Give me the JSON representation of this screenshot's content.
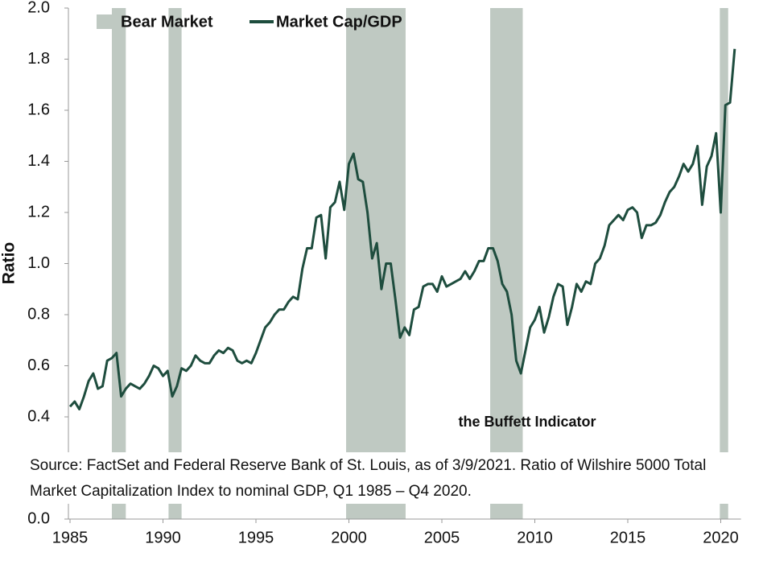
{
  "chart_data": {
    "type": "line",
    "ylabel": "Ratio",
    "annotation": "the Buffett Indicator",
    "source": [
      "Source: FactSet and Federal Reserve Bank of St. Louis, as of 3/9/2021. Ratio of Wilshire 5000 Total",
      "Market Capitalization Index to nominal GDP, Q1 1985 – Q4 2020."
    ],
    "xlim": [
      1985,
      2021
    ],
    "xticks": [
      1985,
      1990,
      1995,
      2000,
      2005,
      2010,
      2015,
      2020
    ],
    "ylim": [
      0,
      2
    ],
    "yticks": [
      {
        "value": 0,
        "label": "0.0"
      },
      0.4,
      0.6,
      0.8,
      {
        "value": 1,
        "label": "1.0"
      },
      1.2,
      1.4,
      1.6,
      1.8,
      {
        "value": 2,
        "label": "2.0"
      }
    ],
    "bear_markets": {
      "name": "Bear Market",
      "color": "#bfc9c2",
      "ranges": [
        [
          1987.25,
          1988.0
        ],
        [
          1990.3,
          1991.0
        ],
        [
          1999.85,
          2003.05
        ],
        [
          2007.6,
          2009.35
        ],
        [
          2019.95,
          2020.4
        ]
      ]
    },
    "x": [
      1985,
      1985.25,
      1985.5,
      1985.75,
      1986,
      1986.25,
      1986.5,
      1986.75,
      1987,
      1987.25,
      1987.5,
      1987.75,
      1988,
      1988.25,
      1988.5,
      1988.75,
      1989,
      1989.25,
      1989.5,
      1989.75,
      1990,
      1990.25,
      1990.5,
      1990.75,
      1991,
      1991.25,
      1991.5,
      1991.75,
      1992,
      1992.25,
      1992.5,
      1992.75,
      1993,
      1993.25,
      1993.5,
      1993.75,
      1994,
      1994.25,
      1994.5,
      1994.75,
      1995,
      1995.25,
      1995.5,
      1995.75,
      1996,
      1996.25,
      1996.5,
      1996.75,
      1997,
      1997.25,
      1997.5,
      1997.75,
      1998,
      1998.25,
      1998.5,
      1998.75,
      1999,
      1999.25,
      1999.5,
      1999.75,
      2000,
      2000.25,
      2000.5,
      2000.75,
      2001,
      2001.25,
      2001.5,
      2001.75,
      2002,
      2002.25,
      2002.5,
      2002.75,
      2003,
      2003.25,
      2003.5,
      2003.75,
      2004,
      2004.25,
      2004.5,
      2004.75,
      2005,
      2005.25,
      2005.5,
      2005.75,
      2006,
      2006.25,
      2006.5,
      2006.75,
      2007,
      2007.25,
      2007.5,
      2007.75,
      2008,
      2008.25,
      2008.5,
      2008.75,
      2009,
      2009.25,
      2009.5,
      2009.75,
      2010,
      2010.25,
      2010.5,
      2010.75,
      2011,
      2011.25,
      2011.5,
      2011.75,
      2012,
      2012.25,
      2012.5,
      2012.75,
      2013,
      2013.25,
      2013.5,
      2013.75,
      2014,
      2014.25,
      2014.5,
      2014.75,
      2015,
      2015.25,
      2015.5,
      2015.75,
      2016,
      2016.25,
      2016.5,
      2016.75,
      2017,
      2017.25,
      2017.5,
      2017.75,
      2018,
      2018.25,
      2018.5,
      2018.75,
      2019,
      2019.25,
      2019.5,
      2019.75,
      2020,
      2020.25,
      2020.5,
      2020.75
    ],
    "series": [
      {
        "name": "Market Cap/GDP",
        "color": "#1e4d3e",
        "values": [
          0.44,
          0.46,
          0.43,
          0.48,
          0.54,
          0.57,
          0.51,
          0.52,
          0.62,
          0.63,
          0.65,
          0.48,
          0.51,
          0.53,
          0.52,
          0.51,
          0.53,
          0.56,
          0.6,
          0.59,
          0.56,
          0.58,
          0.48,
          0.52,
          0.59,
          0.58,
          0.6,
          0.64,
          0.62,
          0.61,
          0.61,
          0.64,
          0.66,
          0.65,
          0.67,
          0.66,
          0.62,
          0.61,
          0.62,
          0.61,
          0.65,
          0.7,
          0.75,
          0.77,
          0.8,
          0.82,
          0.82,
          0.85,
          0.87,
          0.86,
          0.98,
          1.06,
          1.06,
          1.18,
          1.19,
          1.02,
          1.22,
          1.24,
          1.32,
          1.21,
          1.39,
          1.43,
          1.33,
          1.32,
          1.2,
          1.02,
          1.08,
          0.9,
          1.0,
          1.0,
          0.86,
          0.71,
          0.75,
          0.72,
          0.82,
          0.83,
          0.91,
          0.92,
          0.92,
          0.89,
          0.95,
          0.91,
          0.92,
          0.93,
          0.94,
          0.97,
          0.94,
          0.97,
          1.01,
          1.01,
          1.06,
          1.06,
          1.01,
          0.92,
          0.89,
          0.8,
          0.62,
          0.57,
          0.66,
          0.75,
          0.78,
          0.83,
          0.73,
          0.79,
          0.87,
          0.92,
          0.91,
          0.76,
          0.83,
          0.92,
          0.89,
          0.93,
          0.92,
          1.0,
          1.02,
          1.07,
          1.15,
          1.17,
          1.19,
          1.17,
          1.21,
          1.22,
          1.2,
          1.1,
          1.15,
          1.15,
          1.16,
          1.19,
          1.24,
          1.28,
          1.3,
          1.34,
          1.39,
          1.36,
          1.39,
          1.46,
          1.23,
          1.38,
          1.42,
          1.51,
          1.2,
          1.62,
          1.63,
          1.84
        ]
      }
    ]
  }
}
